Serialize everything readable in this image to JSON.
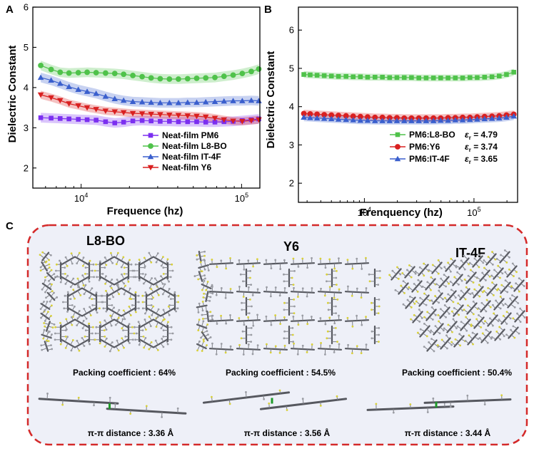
{
  "panels": {
    "A": "A",
    "B": "B",
    "C": "C"
  },
  "chart_data": [
    {
      "type": "line",
      "panel": "A",
      "xlabel": "Frequence (hz)",
      "ylabel": "Dielectric Constant",
      "x_scale": "log",
      "xlim": [
        5000,
        130000
      ],
      "ylim": [
        1.5,
        6
      ],
      "x_ticks": [
        10000,
        100000
      ],
      "x_tick_labels": [
        "10^4",
        "10^5"
      ],
      "y_ticks": [
        2,
        3,
        4,
        5,
        6
      ],
      "legend_position": "bottom-right",
      "x": [
        5600,
        6500,
        7400,
        8400,
        9600,
        10900,
        12400,
        14200,
        16200,
        18400,
        21000,
        24000,
        27300,
        31100,
        35500,
        40400,
        46100,
        52500,
        59800,
        68200,
        77700,
        88600,
        101000,
        115000,
        128000
      ],
      "series": [
        {
          "name": "Neat-film PM6",
          "color": "#7b2ff0",
          "marker": "square",
          "band": 0.12,
          "values": [
            3.25,
            3.24,
            3.23,
            3.22,
            3.21,
            3.2,
            3.19,
            3.15,
            3.12,
            3.14,
            3.17,
            3.18,
            3.17,
            3.16,
            3.16,
            3.15,
            3.15,
            3.15,
            3.14,
            3.14,
            3.15,
            3.16,
            3.18,
            3.2,
            3.22
          ]
        },
        {
          "name": "Neat-film L8-BO",
          "color": "#4fc24a",
          "marker": "circle",
          "band": 0.12,
          "values": [
            4.55,
            4.45,
            4.38,
            4.36,
            4.37,
            4.38,
            4.37,
            4.36,
            4.35,
            4.33,
            4.3,
            4.27,
            4.24,
            4.22,
            4.21,
            4.21,
            4.22,
            4.23,
            4.24,
            4.25,
            4.28,
            4.31,
            4.35,
            4.4,
            4.46
          ]
        },
        {
          "name": "Neat-film IT-4F",
          "color": "#3a5fcd",
          "marker": "triangle",
          "band": 0.12,
          "values": [
            4.25,
            4.18,
            4.1,
            4.02,
            3.95,
            3.9,
            3.85,
            3.78,
            3.72,
            3.68,
            3.65,
            3.64,
            3.63,
            3.62,
            3.62,
            3.62,
            3.63,
            3.63,
            3.64,
            3.65,
            3.66,
            3.67,
            3.67,
            3.68,
            3.67
          ]
        },
        {
          "name": "Neat-film Y6",
          "color": "#d92020",
          "marker": "triangle-down",
          "band": 0.1,
          "values": [
            3.82,
            3.75,
            3.68,
            3.6,
            3.55,
            3.5,
            3.46,
            3.42,
            3.4,
            3.38,
            3.36,
            3.35,
            3.34,
            3.33,
            3.32,
            3.31,
            3.3,
            3.29,
            3.27,
            3.24,
            3.2,
            3.17,
            3.16,
            3.18,
            3.2
          ]
        }
      ]
    },
    {
      "type": "line",
      "panel": "B",
      "xlabel": "Frenquency (hz)",
      "ylabel": "Dielectric Constant",
      "x_scale": "log",
      "xlim": [
        2500,
        250000
      ],
      "ylim": [
        1.5,
        6.6
      ],
      "x_ticks": [
        10000,
        100000
      ],
      "x_tick_labels": [
        "10^4",
        "10^5"
      ],
      "y_ticks": [
        2,
        3,
        4,
        5,
        6
      ],
      "legend_position": "bottom-right",
      "x": [
        2800,
        3200,
        3700,
        4300,
        5000,
        5800,
        6800,
        7900,
        9200,
        10700,
        12500,
        14600,
        17000,
        19800,
        23100,
        26900,
        31400,
        36600,
        42700,
        49700,
        58000,
        67600,
        78800,
        91900,
        107000,
        125000,
        146000,
        170000,
        198000,
        231000
      ],
      "series": [
        {
          "name": "PM6:L8-BO",
          "annotation": "ε_r = 4.79",
          "color": "#4fc24a",
          "marker": "square",
          "band": 0.09,
          "values": [
            4.84,
            4.83,
            4.82,
            4.81,
            4.8,
            4.79,
            4.79,
            4.78,
            4.78,
            4.77,
            4.77,
            4.77,
            4.76,
            4.76,
            4.76,
            4.76,
            4.75,
            4.75,
            4.75,
            4.75,
            4.75,
            4.75,
            4.75,
            4.76,
            4.76,
            4.77,
            4.78,
            4.8,
            4.84,
            4.9
          ]
        },
        {
          "name": "PM6:Y6",
          "annotation": "ε_r = 3.74",
          "color": "#d92020",
          "marker": "circle",
          "band": 0.1,
          "values": [
            3.82,
            3.81,
            3.8,
            3.79,
            3.78,
            3.77,
            3.76,
            3.75,
            3.74,
            3.73,
            3.72,
            3.72,
            3.71,
            3.71,
            3.7,
            3.7,
            3.7,
            3.7,
            3.7,
            3.7,
            3.71,
            3.71,
            3.72,
            3.72,
            3.73,
            3.74,
            3.75,
            3.76,
            3.78,
            3.8
          ]
        },
        {
          "name": "PM6:IT-4F",
          "annotation": "ε_r = 3.65",
          "color": "#3a5fcd",
          "marker": "triangle",
          "band": 0.1,
          "values": [
            3.72,
            3.71,
            3.7,
            3.69,
            3.68,
            3.67,
            3.66,
            3.65,
            3.64,
            3.64,
            3.63,
            3.63,
            3.63,
            3.63,
            3.63,
            3.63,
            3.63,
            3.63,
            3.63,
            3.64,
            3.64,
            3.65,
            3.65,
            3.66,
            3.67,
            3.68,
            3.69,
            3.7,
            3.72,
            3.75
          ]
        }
      ]
    }
  ],
  "panel_c": {
    "structures": [
      {
        "name": "L8-BO",
        "packing": "Packing coefficient : 64%",
        "distance": "π-π distance : 3.36 Å"
      },
      {
        "name": "Y6",
        "packing": "Packing coefficient : 54.5%",
        "distance": "π-π distance : 3.56 Å"
      },
      {
        "name": "IT-4F",
        "packing": "Packing coefficient : 50.4%",
        "distance": "π-π distance : 3.44 Å"
      }
    ],
    "border_color": "#d42a2a",
    "background_color": "#eef0f8"
  }
}
